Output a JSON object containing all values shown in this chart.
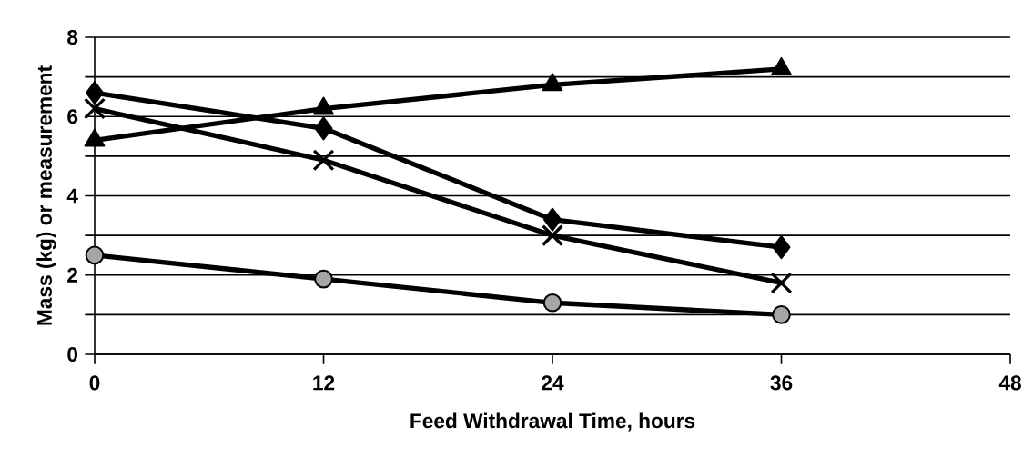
{
  "chart_data": {
    "type": "line",
    "xlabel": "Feed Withdrawal Time, hours",
    "ylabel": "Mass (kg) or measurement",
    "x": [
      0,
      12,
      24,
      36
    ],
    "series": [
      {
        "color": "#000000",
        "marker": "diamond",
        "values": [
          6.6,
          5.7,
          3.4,
          2.7
        ]
      },
      {
        "color": "#000000",
        "marker": "cross",
        "values": [
          6.2,
          4.9,
          3.0,
          1.8
        ]
      },
      {
        "color": "#000000",
        "marker": "triangle",
        "values": [
          5.4,
          6.2,
          6.8,
          7.2
        ]
      },
      {
        "color": "#000000",
        "marker": "circle",
        "values": [
          2.5,
          1.9,
          1.3,
          1.0
        ]
      }
    ],
    "xlim": [
      0,
      48
    ],
    "xticks": [
      0,
      12,
      24,
      36,
      48
    ],
    "ylim": [
      0,
      8
    ],
    "yticks": [
      0,
      {
        "value": 1,
        "label": null
      },
      2,
      {
        "value": 3,
        "label": null
      },
      4,
      {
        "value": 5,
        "label": null
      },
      6,
      {
        "value": 7,
        "label": null
      },
      8
    ],
    "grid": "y",
    "line_style": "solid"
  }
}
